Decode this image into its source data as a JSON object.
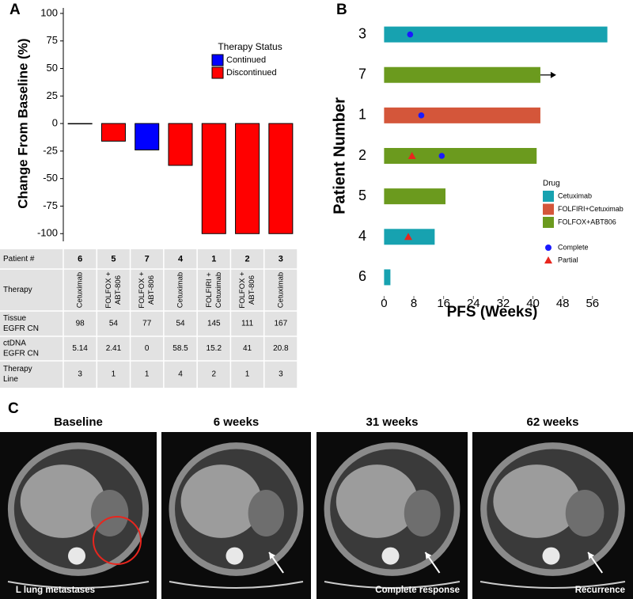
{
  "chart_data": [
    {
      "type": "bar",
      "panel": "A",
      "ylabel": "Change From Baseline (%)",
      "categories": [
        "6",
        "5",
        "7",
        "4",
        "1",
        "2",
        "3"
      ],
      "series": [
        {
          "name": "Continued",
          "color": "#0000ff",
          "values": [
            null,
            null,
            -24,
            null,
            null,
            null,
            null
          ]
        },
        {
          "name": "Discontinued",
          "color": "#ff0000",
          "values": [
            0,
            -16,
            null,
            -38,
            -100,
            -100,
            -100
          ]
        }
      ],
      "legend_title": "Therapy Status",
      "ylim": [
        -107,
        105
      ],
      "yticks": [
        -100,
        -75,
        -50,
        -25,
        0,
        25,
        50,
        75,
        100
      ]
    },
    {
      "type": "swimmer",
      "panel": "B",
      "xlabel": "PFS (Weeks)",
      "ylabel": "Patient Number",
      "categories": [
        "3",
        "7",
        "1",
        "2",
        "5",
        "4",
        "6"
      ],
      "series": [
        {
          "name": "Cetuximab",
          "color": "#17a2b0",
          "values": [
            60,
            null,
            null,
            null,
            null,
            13.6,
            1.7
          ]
        },
        {
          "name": "FOLFIRI+Cetuximab",
          "color": "#d4563a",
          "values": [
            null,
            null,
            42,
            null,
            null,
            null,
            null
          ]
        },
        {
          "name": "FOLFOX+ABT806",
          "color": "#6b9a1e",
          "values": [
            null,
            42,
            null,
            41,
            16.5,
            null,
            null
          ]
        }
      ],
      "ongoing": [
        false,
        true,
        false,
        false,
        false,
        false,
        false
      ],
      "markers": [
        {
          "name": "Complete",
          "color": "#1a1aff",
          "shape": "circle",
          "categories": [
            "3",
            "1",
            "2"
          ],
          "x": [
            7,
            10,
            15.5
          ]
        },
        {
          "name": "Partial",
          "color": "#e8261e",
          "shape": "triangle",
          "categories": [
            "2",
            "4"
          ],
          "x": [
            7.5,
            6.5
          ]
        }
      ],
      "legend_title": "Drug",
      "xlim": [
        -2,
        62
      ],
      "xticks": [
        0,
        8,
        16,
        24,
        32,
        40,
        48,
        56
      ]
    }
  ],
  "table": {
    "header": "Patient #",
    "rows": [
      {
        "label": [
          "Therapy"
        ],
        "cells": [
          [
            "Cetuximab"
          ],
          [
            "FOLFOX +",
            "ABT-806"
          ],
          [
            "FOLFOX +",
            "ABT-806"
          ],
          [
            "Cetuximab"
          ],
          [
            "FOLFIRI +",
            "Cetuximab"
          ],
          [
            "FOLFOX +",
            "ABT-806"
          ],
          [
            "Cetuximab"
          ]
        ]
      },
      {
        "label": [
          "Tissue",
          "EGFR CN"
        ],
        "cells": [
          98,
          54,
          77,
          54,
          145,
          111,
          167
        ]
      },
      {
        "label": [
          "ctDNA",
          "EGFR CN"
        ],
        "cells": [
          5.14,
          2.41,
          0,
          58.5,
          15.2,
          41,
          20.8
        ]
      },
      {
        "label": [
          "Therapy",
          "Line"
        ],
        "cells": [
          3,
          1,
          1,
          4,
          2,
          1,
          3
        ]
      }
    ]
  },
  "imaging": {
    "panel": "C",
    "scans": [
      {
        "title": "Baseline",
        "caption": "L lung metastases"
      },
      {
        "title": "6 weeks"
      },
      {
        "title": "31 weeks",
        "caption": "Complete response"
      },
      {
        "title": "62 weeks",
        "caption": "Recurrence"
      }
    ]
  }
}
